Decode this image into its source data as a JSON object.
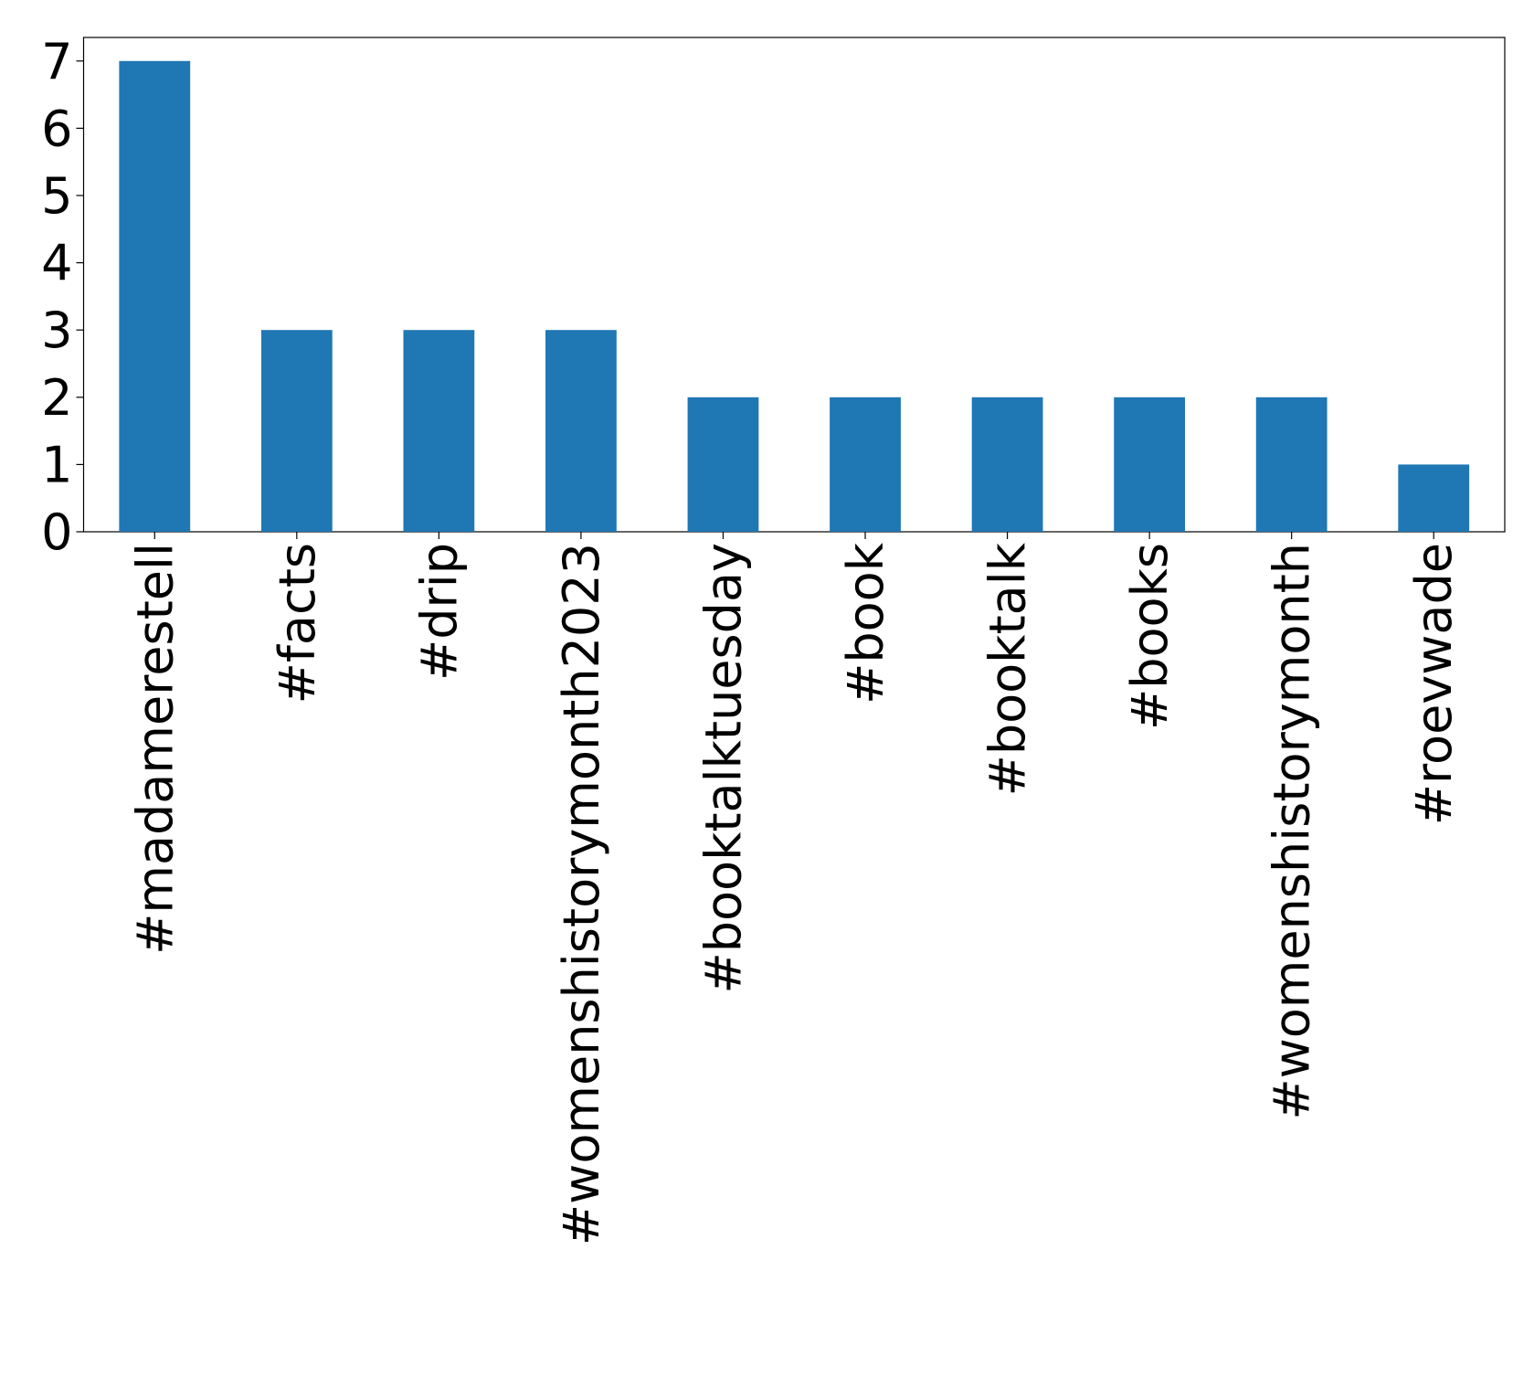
{
  "chart_data": {
    "type": "bar",
    "categories": [
      "#madamerestell",
      "#facts",
      "#drip",
      "#womenshistorymonth2023",
      "#booktalktuesday",
      "#book",
      "#booktalk",
      "#books",
      "#womenshistorymonth",
      "#roevwade"
    ],
    "values": [
      7,
      3,
      3,
      3,
      2,
      2,
      2,
      2,
      2,
      1
    ],
    "color": "#1f77b4",
    "ylim": [
      0,
      7.35
    ],
    "yticks": [
      0,
      1,
      2,
      3,
      4,
      5,
      6,
      7
    ],
    "grid": false
  }
}
